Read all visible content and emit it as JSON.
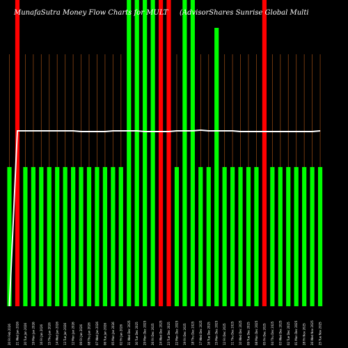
{
  "chart_data": {
    "type": "bar",
    "title": "MunafaSutra  Money Flow  Charts for MULT",
    "subtitle": "(AdvisorShares Sunrise   Global Multi",
    "categories": [
      "20 Fri Feb 2026",
      "21 Wed Jan 2026",
      "20 Tue Jan 2026",
      "19 Mon Jan 2026",
      "16 Fri Jan 2026",
      "15 Thu Jan 2026",
      "14 Wed Jan 2026",
      "13 Tue Jan 2026",
      "12 Mon Jan 2026",
      "09 Fri Jan 2026",
      "08 Thu Jan 2026",
      "07 Wed Jan 2026",
      "06 Tue Jan 2026",
      "05 Mon Jan 2026",
      "02 Fri Jan 2026",
      "31 Wed Dec 2025",
      "30 Tue Dec 2025",
      "29 Mon Dec 2025",
      "26 Fri Dec 2025",
      "24 Wed Dec 2025",
      "23 Tue Dec 2025",
      "22 Mon Dec 2025",
      "19 Fri Dec 2025",
      "18 Thu Dec 2025",
      "17 Wed Dec 2025",
      "16 Tue Dec 2025",
      "15 Mon Dec 2025",
      "12 Fri Dec 2025",
      "11 Thu Dec 2025",
      "10 Wed Dec 2025",
      "09 Tue Dec 2025",
      "08 Mon Dec 2025",
      "05 Fri Dec 2025",
      "04 Thu Dec 2025",
      "03 Wed Dec 2025",
      "02 Tue Dec 2025",
      "01 Mon Dec 2025",
      "28 Fri Nov 2025",
      "26 Wed Nov 2025",
      "25 Tue Nov 2025"
    ],
    "values": [
      200,
      440,
      200,
      200,
      200,
      200,
      200,
      200,
      200,
      200,
      200,
      200,
      200,
      200,
      200,
      440,
      440,
      440,
      440,
      440,
      440,
      200,
      440,
      440,
      200,
      200,
      400,
      200,
      200,
      200,
      200,
      200,
      440,
      200,
      200,
      200,
      200,
      200,
      200,
      200
    ],
    "directions": [
      "up",
      "down",
      "up",
      "up",
      "up",
      "up",
      "up",
      "up",
      "up",
      "up",
      "up",
      "up",
      "up",
      "up",
      "up",
      "up",
      "up",
      "up",
      "up",
      "down",
      "down",
      "up",
      "up",
      "up",
      "up",
      "up",
      "up",
      "up",
      "up",
      "up",
      "up",
      "up",
      "down",
      "up",
      "up",
      "up",
      "up",
      "up",
      "up",
      "up"
    ],
    "price_line": [
      0,
      252,
      252,
      252,
      252,
      252,
      252,
      252,
      252,
      251,
      251,
      251,
      251,
      252,
      252,
      252,
      252,
      251,
      251,
      251,
      251,
      252,
      252,
      252,
      253,
      252,
      252,
      252,
      252,
      251,
      251,
      251,
      251,
      251,
      251,
      251,
      251,
      251,
      251,
      252
    ],
    "ylim": [
      0,
      440
    ],
    "colors": {
      "up": "#00ff00",
      "down": "#ff0000",
      "price": "#ffffff",
      "grid": "#8b4513",
      "background": "#000000"
    },
    "grid": true,
    "legend": "none"
  }
}
